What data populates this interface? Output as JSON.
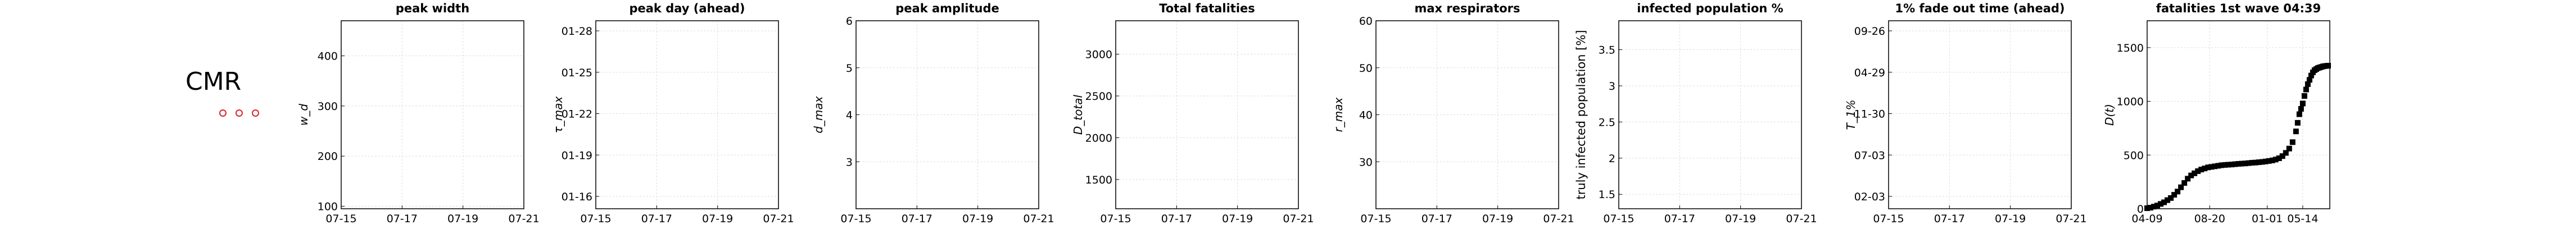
{
  "country": "CMR",
  "marker_color": "#d62728",
  "chart_data": [
    {
      "type": "line",
      "title": "peak width",
      "ylabel": "w_d",
      "xticks": [
        "07-15",
        "07-17",
        "07-19",
        "07-21"
      ],
      "yticks": [
        "100",
        "200",
        "300",
        "400"
      ],
      "ylim": [
        95,
        470
      ],
      "series": []
    },
    {
      "type": "line",
      "title": "peak day (ahead)",
      "ylabel": "τ_max",
      "xticks": [
        "07-15",
        "07-17",
        "07-19",
        "07-21"
      ],
      "yticks": [
        "01-16",
        "01-19",
        "01-22",
        "01-25",
        "01-28"
      ],
      "series": []
    },
    {
      "type": "line",
      "title": "peak amplitude",
      "ylabel": "d_max",
      "xticks": [
        "07-15",
        "07-17",
        "07-19",
        "07-21"
      ],
      "yticks": [
        "3",
        "4",
        "5",
        "6"
      ],
      "ylim": [
        2.0,
        6.0
      ],
      "series": []
    },
    {
      "type": "line",
      "title": "Total fatalities",
      "ylabel": "D_total",
      "xticks": [
        "07-15",
        "07-17",
        "07-19",
        "07-21"
      ],
      "yticks": [
        "1500",
        "2000",
        "2500",
        "3000"
      ],
      "ylim": [
        1150,
        3400
      ],
      "series": []
    },
    {
      "type": "line",
      "title": "max respirators",
      "ylabel": "r_max",
      "xticks": [
        "07-15",
        "07-17",
        "07-19",
        "07-21"
      ],
      "yticks": [
        "30",
        "40",
        "50",
        "60"
      ],
      "ylim": [
        20,
        60
      ],
      "series": []
    },
    {
      "type": "line",
      "title": "infected population %",
      "ylabel": "truly infected population [%]",
      "xticks": [
        "07-15",
        "07-17",
        "07-19",
        "07-21"
      ],
      "yticks": [
        "1.5",
        "2",
        "2.5",
        "3",
        "3.5"
      ],
      "ylim": [
        1.3,
        3.9
      ],
      "series": []
    },
    {
      "type": "line",
      "title": "1% fade out time (ahead)",
      "ylabel": "T_1%",
      "xticks": [
        "07-15",
        "07-17",
        "07-19",
        "07-21"
      ],
      "yticks": [
        "02-03",
        "07-03",
        "11-30",
        "04-29",
        "09-26"
      ],
      "series": []
    },
    {
      "type": "scatter",
      "title": "fatalities 1st wave 04:39",
      "ylabel": "D(t)",
      "xticks": [
        "04-09",
        "08-20",
        "01-01",
        "05-14"
      ],
      "yticks": [
        "0",
        "500",
        "1000",
        "1500"
      ],
      "ylim": [
        0,
        1750
      ],
      "series": [
        {
          "values": [
            [
              0,
              5
            ],
            [
              4,
              10
            ],
            [
              8,
              20
            ],
            [
              12,
              30
            ],
            [
              16,
              45
            ],
            [
              20,
              60
            ],
            [
              24,
              80
            ],
            [
              28,
              100
            ],
            [
              32,
              130
            ],
            [
              36,
              160
            ],
            [
              40,
              200
            ],
            [
              44,
              240
            ],
            [
              48,
              280
            ],
            [
              52,
              310
            ],
            [
              56,
              330
            ],
            [
              60,
              350
            ],
            [
              64,
              365
            ],
            [
              68,
              375
            ],
            [
              72,
              385
            ],
            [
              76,
              390
            ],
            [
              80,
              395
            ],
            [
              84,
              400
            ],
            [
              88,
              405
            ],
            [
              92,
              408
            ],
            [
              96,
              410
            ],
            [
              100,
              412
            ],
            [
              104,
              415
            ],
            [
              108,
              418
            ],
            [
              112,
              420
            ],
            [
              116,
              422
            ],
            [
              120,
              425
            ],
            [
              124,
              428
            ],
            [
              128,
              430
            ],
            [
              132,
              433
            ],
            [
              136,
              436
            ],
            [
              140,
              440
            ],
            [
              144,
              445
            ],
            [
              148,
              450
            ],
            [
              152,
              458
            ],
            [
              156,
              470
            ],
            [
              160,
              490
            ],
            [
              164,
              520
            ],
            [
              168,
              560
            ],
            [
              172,
              620
            ],
            [
              176,
              720
            ],
            [
              178,
              800
            ],
            [
              180,
              880
            ],
            [
              182,
              930
            ],
            [
              184,
              980
            ],
            [
              186,
              1050
            ],
            [
              188,
              1110
            ],
            [
              190,
              1160
            ],
            [
              192,
              1200
            ],
            [
              194,
              1240
            ],
            [
              196,
              1270
            ],
            [
              198,
              1290
            ],
            [
              200,
              1300
            ],
            [
              202,
              1310
            ],
            [
              204,
              1315
            ],
            [
              206,
              1320
            ],
            [
              208,
              1325
            ],
            [
              210,
              1328
            ],
            [
              212,
              1330
            ],
            [
              214,
              1332
            ]
          ]
        }
      ],
      "x_tick_positions": [
        0,
        74,
        142,
        184
      ],
      "xlim": [
        0,
        216
      ]
    }
  ]
}
